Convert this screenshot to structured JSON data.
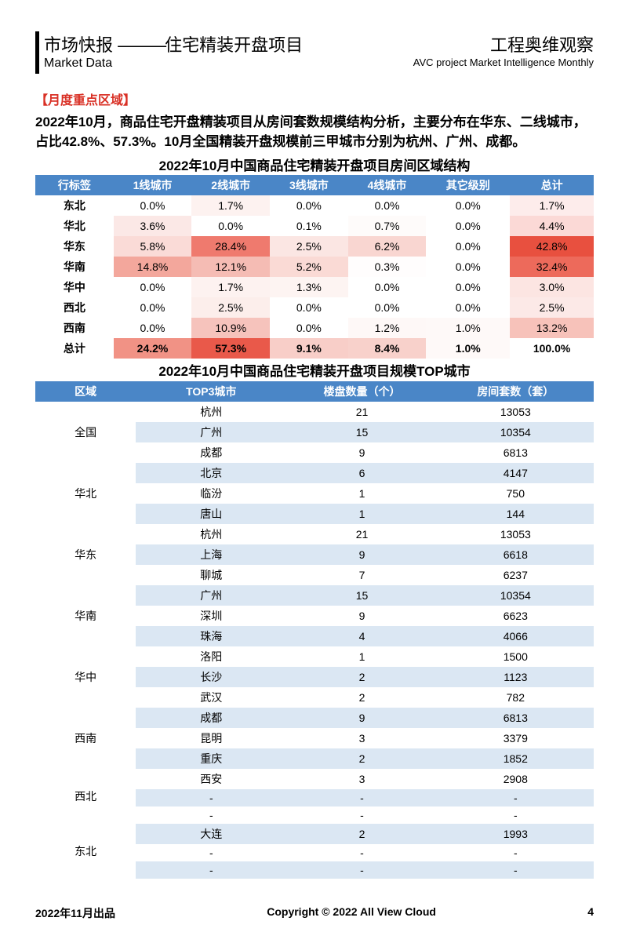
{
  "header": {
    "left_cn_a": "市场快报",
    "left_sep": "———",
    "left_cn_b": "住宅精装开盘项目",
    "left_en": "Market Data",
    "right_cn": "工程奥维观察",
    "right_en": "AVC  project Market Intelligence Monthly"
  },
  "section_heading": "【月度重点区域】",
  "lead": "2022年10月，商品住宅开盘精装项目从房间套数规模结构分析，主要分布在华东、二线城市，占比42.8%、57.3%。10月全国精装开盘规模前三甲城市分别为杭州、广州、成都。",
  "table1": {
    "title": "2022年10月中国商品住宅精装开盘项目房间区域结构",
    "headers": [
      "行标签",
      "1线城市",
      "2线城市",
      "3线城市",
      "4线城市",
      "其它级别",
      "总计"
    ],
    "rows": [
      {
        "label": "东北",
        "cells": [
          "0.0%",
          "1.7%",
          "0.0%",
          "0.0%",
          "0.0%",
          "1.7%"
        ],
        "bg": [
          "#ffffff",
          "#fdf2f0",
          "#ffffff",
          "#ffffff",
          "#ffffff",
          "#fdeceb"
        ]
      },
      {
        "label": "华北",
        "cells": [
          "3.6%",
          "0.0%",
          "0.1%",
          "0.7%",
          "0.0%",
          "4.4%"
        ],
        "bg": [
          "#fbe8e6",
          "#ffffff",
          "#ffffff",
          "#fefbfa",
          "#ffffff",
          "#fbd9d6"
        ]
      },
      {
        "label": "华东",
        "cells": [
          "5.8%",
          "28.4%",
          "2.5%",
          "6.2%",
          "0.0%",
          "42.8%"
        ],
        "bg": [
          "#fadbd7",
          "#ef7a6e",
          "#fbe6e3",
          "#f9d6d1",
          "#ffffff",
          "#e8503f"
        ]
      },
      {
        "label": "华南",
        "cells": [
          "14.8%",
          "12.1%",
          "5.2%",
          "0.3%",
          "0.0%",
          "32.4%"
        ],
        "bg": [
          "#f3a79c",
          "#f5bcb4",
          "#fadad5",
          "#fffdfd",
          "#ffffff",
          "#ed6a5b"
        ]
      },
      {
        "label": "华中",
        "cells": [
          "0.0%",
          "1.7%",
          "1.3%",
          "0.0%",
          "0.0%",
          "3.0%"
        ],
        "bg": [
          "#ffffff",
          "#fdf2f0",
          "#fdf4f2",
          "#ffffff",
          "#ffffff",
          "#fce5e2"
        ]
      },
      {
        "label": "西北",
        "cells": [
          "0.0%",
          "2.5%",
          "0.0%",
          "0.0%",
          "0.0%",
          "2.5%"
        ],
        "bg": [
          "#ffffff",
          "#fceeeb",
          "#ffffff",
          "#ffffff",
          "#ffffff",
          "#fce9e7"
        ]
      },
      {
        "label": "西南",
        "cells": [
          "0.0%",
          "10.9%",
          "0.0%",
          "1.2%",
          "1.0%",
          "13.2%"
        ],
        "bg": [
          "#ffffff",
          "#f6c3bc",
          "#ffffff",
          "#fef8f7",
          "#fef9f8",
          "#f7c2ba"
        ]
      },
      {
        "label": "总计",
        "cells": [
          "24.2%",
          "57.3%",
          "9.1%",
          "8.4%",
          "1.0%",
          "100.0%"
        ],
        "bg": [
          "#f19285",
          "#e9594a",
          "#f8cec8",
          "#f8d1cb",
          "#fef9f8",
          "#ffffff"
        ],
        "total": true
      }
    ],
    "col_widths": [
      "14%",
      "14%",
      "14%",
      "14%",
      "14%",
      "15%",
      "15%"
    ]
  },
  "table2": {
    "title": "2022年10月中国商品住宅精装开盘项目规模TOP城市",
    "headers": [
      "区域",
      "TOP3城市",
      "楼盘数量（个）",
      "房间套数（套）"
    ],
    "groups": [
      {
        "region": "全国",
        "rows": [
          [
            "杭州",
            "21",
            "13053"
          ],
          [
            "广州",
            "15",
            "10354"
          ],
          [
            "成都",
            "9",
            "6813"
          ]
        ]
      },
      {
        "region": "华北",
        "rows": [
          [
            "北京",
            "6",
            "4147"
          ],
          [
            "临汾",
            "1",
            "750"
          ],
          [
            "唐山",
            "1",
            "144"
          ]
        ]
      },
      {
        "region": "华东",
        "rows": [
          [
            "杭州",
            "21",
            "13053"
          ],
          [
            "上海",
            "9",
            "6618"
          ],
          [
            "聊城",
            "7",
            "6237"
          ]
        ]
      },
      {
        "region": "华南",
        "rows": [
          [
            "广州",
            "15",
            "10354"
          ],
          [
            "深圳",
            "9",
            "6623"
          ],
          [
            "珠海",
            "4",
            "4066"
          ]
        ]
      },
      {
        "region": "华中",
        "rows": [
          [
            "洛阳",
            "1",
            "1500"
          ],
          [
            "长沙",
            "2",
            "1123"
          ],
          [
            "武汉",
            "2",
            "782"
          ]
        ]
      },
      {
        "region": "西南",
        "rows": [
          [
            "成都",
            "9",
            "6813"
          ],
          [
            "昆明",
            "3",
            "3379"
          ],
          [
            "重庆",
            "2",
            "1852"
          ]
        ]
      },
      {
        "region": "西北",
        "rows": [
          [
            "西安",
            "3",
            "2908"
          ],
          [
            "-",
            "-",
            "-"
          ],
          [
            "-",
            "-",
            "-"
          ]
        ]
      },
      {
        "region": "东北",
        "rows": [
          [
            "大连",
            "2",
            "1993"
          ],
          [
            "-",
            "-",
            "-"
          ],
          [
            "-",
            "-",
            "-"
          ]
        ]
      }
    ],
    "col_widths": [
      "18%",
      "27%",
      "27%",
      "28%"
    ]
  },
  "footer": {
    "left": "2022年11月出品",
    "center": "Copyright © 2022  All View Cloud",
    "page": "4"
  },
  "colors": {
    "header_blue": "#4a86c7",
    "stripe_blue": "#dbe7f3",
    "section_red": "#d93025"
  }
}
